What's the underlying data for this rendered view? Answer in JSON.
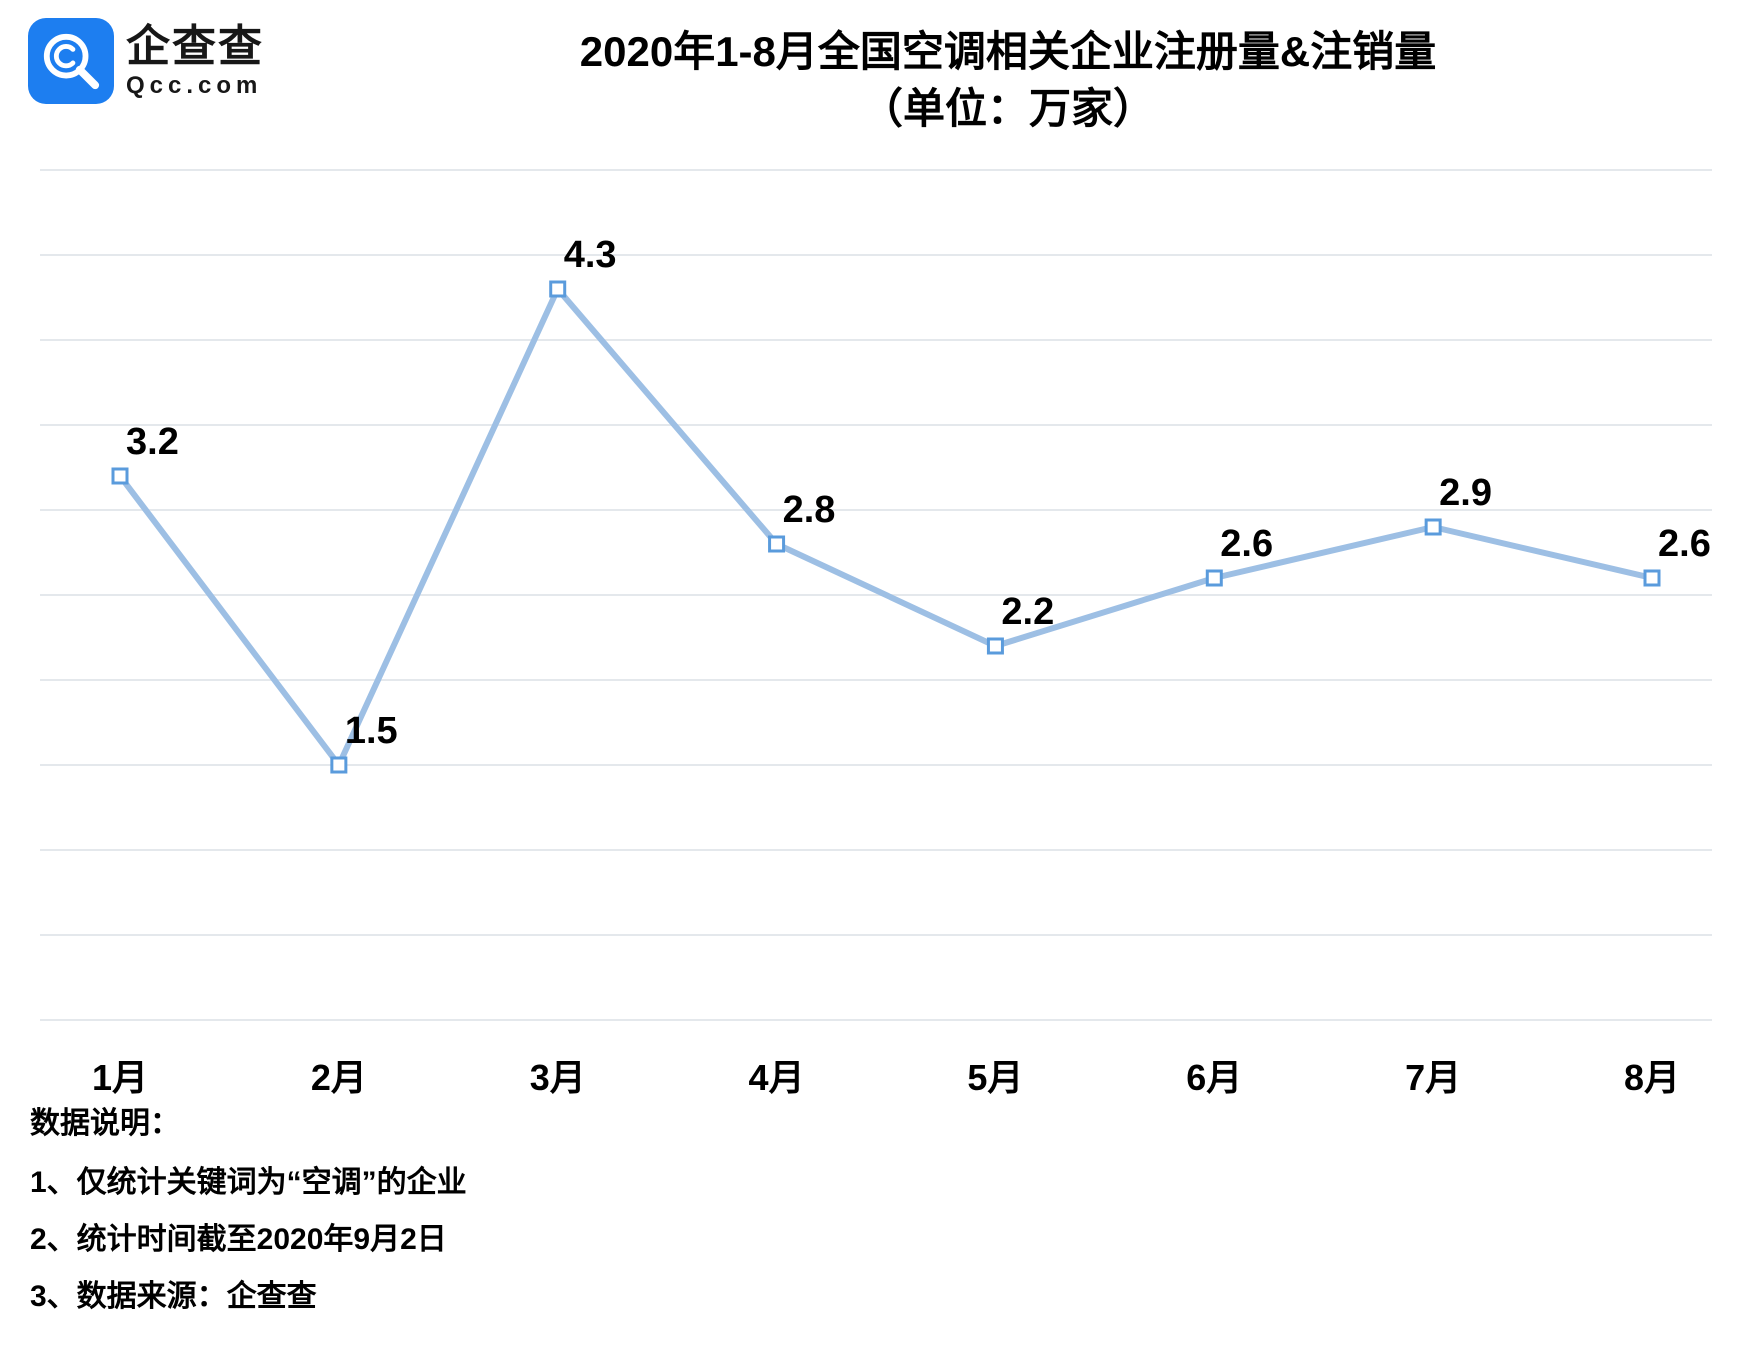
{
  "logo": {
    "cn": "企查查",
    "en": "Qcc.com",
    "badge_bg": "#1d7ef0",
    "badge_fg": "#ffffff"
  },
  "title": {
    "line1": "2020年1-8月全国空调相关企业注册量&注销量",
    "line2": "（单位：万家）",
    "fontsize": 42,
    "color": "#000000"
  },
  "chart": {
    "type": "line",
    "categories": [
      "1月",
      "2月",
      "3月",
      "4月",
      "5月",
      "6月",
      "7月",
      "8月"
    ],
    "values": [
      3.2,
      1.5,
      4.3,
      2.8,
      2.2,
      2.6,
      2.9,
      2.6
    ],
    "value_labels": [
      "3.2",
      "1.5",
      "4.3",
      "2.8",
      "2.2",
      "2.6",
      "2.9",
      "2.6"
    ],
    "ylim": [
      0,
      5
    ],
    "ytick_step": 0.5,
    "grid_lines": [
      0,
      0.5,
      1.0,
      1.5,
      2.0,
      2.5,
      3.0,
      3.5,
      4.0,
      4.5,
      5.0
    ],
    "line_color": "#9dbfe4",
    "line_width": 6,
    "marker_fill": "#ffffff",
    "marker_stroke": "#5a9bdc",
    "marker_size": 14,
    "grid_color": "#e4e8ec",
    "background_color": "#ffffff",
    "axis_label_fontsize": 36,
    "axis_label_weight": 700,
    "value_label_fontsize": 38,
    "value_label_weight": 800,
    "value_label_color": "#000000",
    "plot_left_pad": 80,
    "plot_right_pad": 60,
    "plot_top_pad": 20,
    "plot_bottom_pad": 90
  },
  "notes": {
    "title": "数据说明：",
    "items": [
      "1、仅统计关键词为“空调”的企业",
      "2、统计时间截至2020年9月2日",
      "3、数据来源：企查查"
    ],
    "fontsize": 30,
    "color": "#000000"
  }
}
